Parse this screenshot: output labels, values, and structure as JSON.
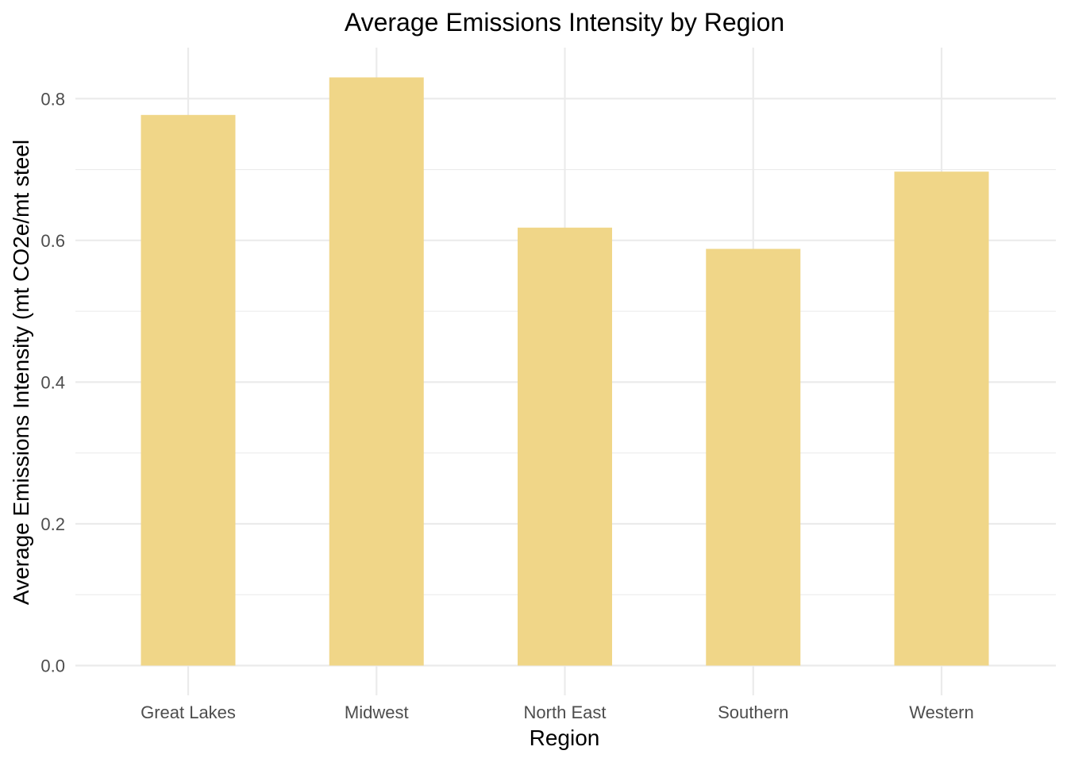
{
  "chart_data": {
    "type": "bar",
    "title": "Average Emissions Intensity by Region",
    "xlabel": "Region",
    "ylabel": "Average Emissions Intensity (mt CO2e/mt steel",
    "categories": [
      "Great Lakes",
      "Midwest",
      "North East",
      "Southern",
      "Western"
    ],
    "values": [
      0.777,
      0.83,
      0.618,
      0.588,
      0.697
    ],
    "ylim": [
      -0.042,
      0.872
    ],
    "yticks": [
      0.0,
      0.2,
      0.4,
      0.6,
      0.8
    ],
    "ytick_labels": [
      "0.0",
      "0.2",
      "0.4",
      "0.6",
      "0.8"
    ],
    "grid": true,
    "bar_color": "#f0d688",
    "grid_color": "#ebebeb",
    "legend": "none"
  }
}
